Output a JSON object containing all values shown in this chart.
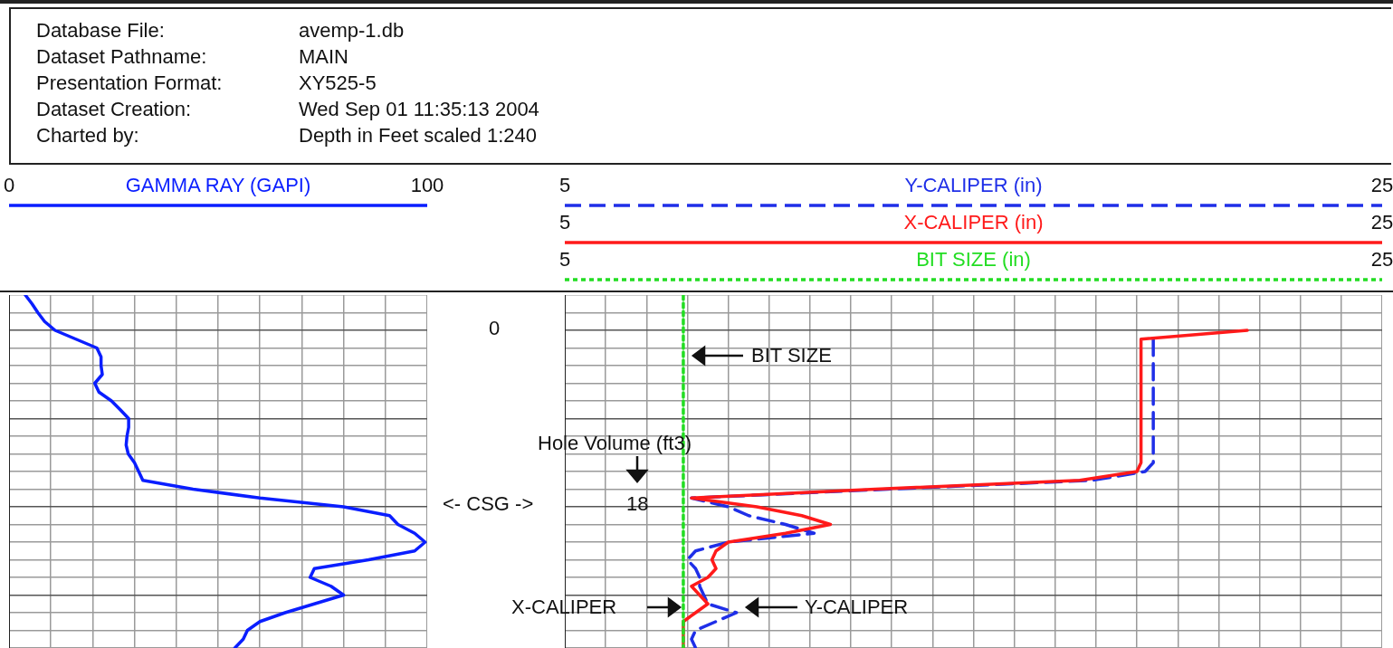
{
  "chart_data": [
    {
      "type": "other",
      "annotations": [
        "Database File:",
        "avemp-1.db",
        "Dataset Pathname:",
        "MAIN",
        "Presentation Format:",
        "XY525-5",
        "Dataset Creation:",
        "Wed Sep 01 11:35:13 2004",
        "Charted by:",
        "Depth in Feet scaled 1:240"
      ]
    },
    {
      "type": "line",
      "orientation": "horizontal",
      "legend": "top",
      "grid": true,
      "tick_labels": "x",
      "categories": [
        null,
        null,
        null,
        null,
        null,
        null,
        null,
        null,
        null,
        null,
        null,
        null,
        null,
        null,
        null,
        null,
        null,
        null,
        null,
        null,
        null,
        null,
        null,
        null,
        null,
        null,
        null,
        null,
        null,
        null,
        null,
        null,
        null,
        null,
        null,
        null,
        null,
        null,
        null,
        null,
        null
      ],
      "xlim": [
        0,
        100
      ],
      "xticks": [
        0,
        {
          "value": 10,
          "label": null
        },
        {
          "value": 20,
          "label": null
        },
        {
          "value": 30,
          "label": null
        },
        {
          "value": 40,
          "label": null
        },
        {
          "value": 50,
          "label": null
        },
        {
          "value": 60,
          "label": null
        },
        {
          "value": 70,
          "label": null
        },
        {
          "value": 80,
          "label": null
        },
        {
          "value": 90,
          "label": null
        },
        100
      ],
      "series": [
        {
          "name": "GAMMA RAY (GAPI)",
          "color": "#0a1eff",
          "line_style": "solid",
          "values": [
            3.9,
            5.5,
            6.9,
            8.5,
            11,
            16,
            21,
            22,
            22,
            22.3,
            20.5,
            21.5,
            24.5,
            26.6,
            28.6,
            28.6,
            28.2,
            28,
            28.5,
            30,
            31,
            32,
            44,
            60,
            80,
            91,
            93,
            97,
            99.5,
            97,
            86,
            73,
            72,
            77,
            80,
            73,
            66,
            60,
            57,
            56,
            54
          ]
        }
      ]
    },
    {
      "type": "line",
      "orientation": "horizontal",
      "legend": "top",
      "grid": true,
      "tick_labels": "x",
      "categories": [
        null,
        null,
        null,
        null,
        null,
        null,
        null,
        null,
        null,
        null,
        null,
        null,
        null,
        null,
        null,
        null,
        null,
        null,
        null,
        null,
        null,
        null,
        null,
        null,
        null,
        null,
        null,
        null,
        null,
        null,
        null,
        null,
        null,
        null,
        null,
        null,
        null,
        null,
        null,
        null,
        null
      ],
      "xlim": [
        5,
        25
      ],
      "xticks": [
        5,
        {
          "value": 6,
          "label": null
        },
        {
          "value": 7,
          "label": null
        },
        {
          "value": 8,
          "label": null
        },
        {
          "value": 9,
          "label": null
        },
        {
          "value": 10,
          "label": null
        },
        {
          "value": 11,
          "label": null
        },
        {
          "value": 12,
          "label": null
        },
        {
          "value": 13,
          "label": null
        },
        {
          "value": 14,
          "label": null
        },
        {
          "value": 15,
          "label": null
        },
        {
          "value": 16,
          "label": null
        },
        {
          "value": 17,
          "label": null
        },
        {
          "value": 18,
          "label": null
        },
        {
          "value": 19,
          "label": null
        },
        {
          "value": 20,
          "label": null
        },
        {
          "value": 21,
          "label": null
        },
        {
          "value": 22,
          "label": null
        },
        {
          "value": 23,
          "label": null
        },
        {
          "value": 24,
          "label": null
        },
        25
      ],
      "series": [
        {
          "name": "Y-CALIPER (in)",
          "color": "#1f2fe8",
          "line_style": "dashed",
          "values": [
            null,
            null,
            null,
            null,
            null,
            19.4,
            19.4,
            19.4,
            19.4,
            19.4,
            19.4,
            19.4,
            19.4,
            19.4,
            19.4,
            19.4,
            19.4,
            19.4,
            19.4,
            19.4,
            19.2,
            17.9,
            12.9,
            8.1,
            9.0,
            9.5,
            10.4,
            11.1,
            9.0,
            8.2,
            8.0,
            8.2,
            8.3,
            8.3,
            8.4,
            8.5,
            9.2,
            8.7,
            8.2,
            8.1,
            8.2
          ]
        },
        {
          "name": "X-CALIPER (in)",
          "color": "#ff1a1a",
          "line_style": "solid",
          "values": [
            null,
            null,
            null,
            null,
            21.7,
            19.1,
            19.1,
            19.1,
            19.1,
            19.1,
            19.1,
            19.1,
            19.1,
            19.1,
            19.1,
            19.1,
            19.1,
            19.1,
            19.1,
            19.1,
            19.0,
            17.6,
            12.6,
            8.1,
            9.7,
            10.8,
            11.5,
            10.4,
            9.0,
            8.7,
            8.6,
            8.7,
            8.5,
            8.1,
            8.3,
            8.5,
            8.2,
            7.9,
            7.9,
            7.9,
            7.9
          ]
        },
        {
          "name": "BIT SIZE (in)",
          "color": "#22dd22",
          "line_style": "dotted",
          "values": [
            7.9,
            7.9,
            7.9,
            7.9,
            7.9,
            7.9,
            7.9,
            7.9,
            7.9,
            7.9,
            7.9,
            7.9,
            7.9,
            7.9,
            7.9,
            7.9,
            7.9,
            7.9,
            7.9,
            7.9,
            7.9,
            7.9,
            7.9,
            7.9,
            7.9,
            7.9,
            7.9,
            7.9,
            7.9,
            7.9,
            7.9,
            7.9,
            7.9,
            7.9,
            7.9,
            7.9,
            7.9,
            7.9,
            7.9,
            7.9,
            7.9
          ]
        }
      ],
      "annotations": [
        "0",
        "Hole Volume (ft3)",
        "18",
        "<- CSG ->",
        "BIT SIZE",
        "X-CALIPER",
        "Y-CALIPER",
        "5",
        "25",
        "5",
        "25"
      ]
    }
  ]
}
